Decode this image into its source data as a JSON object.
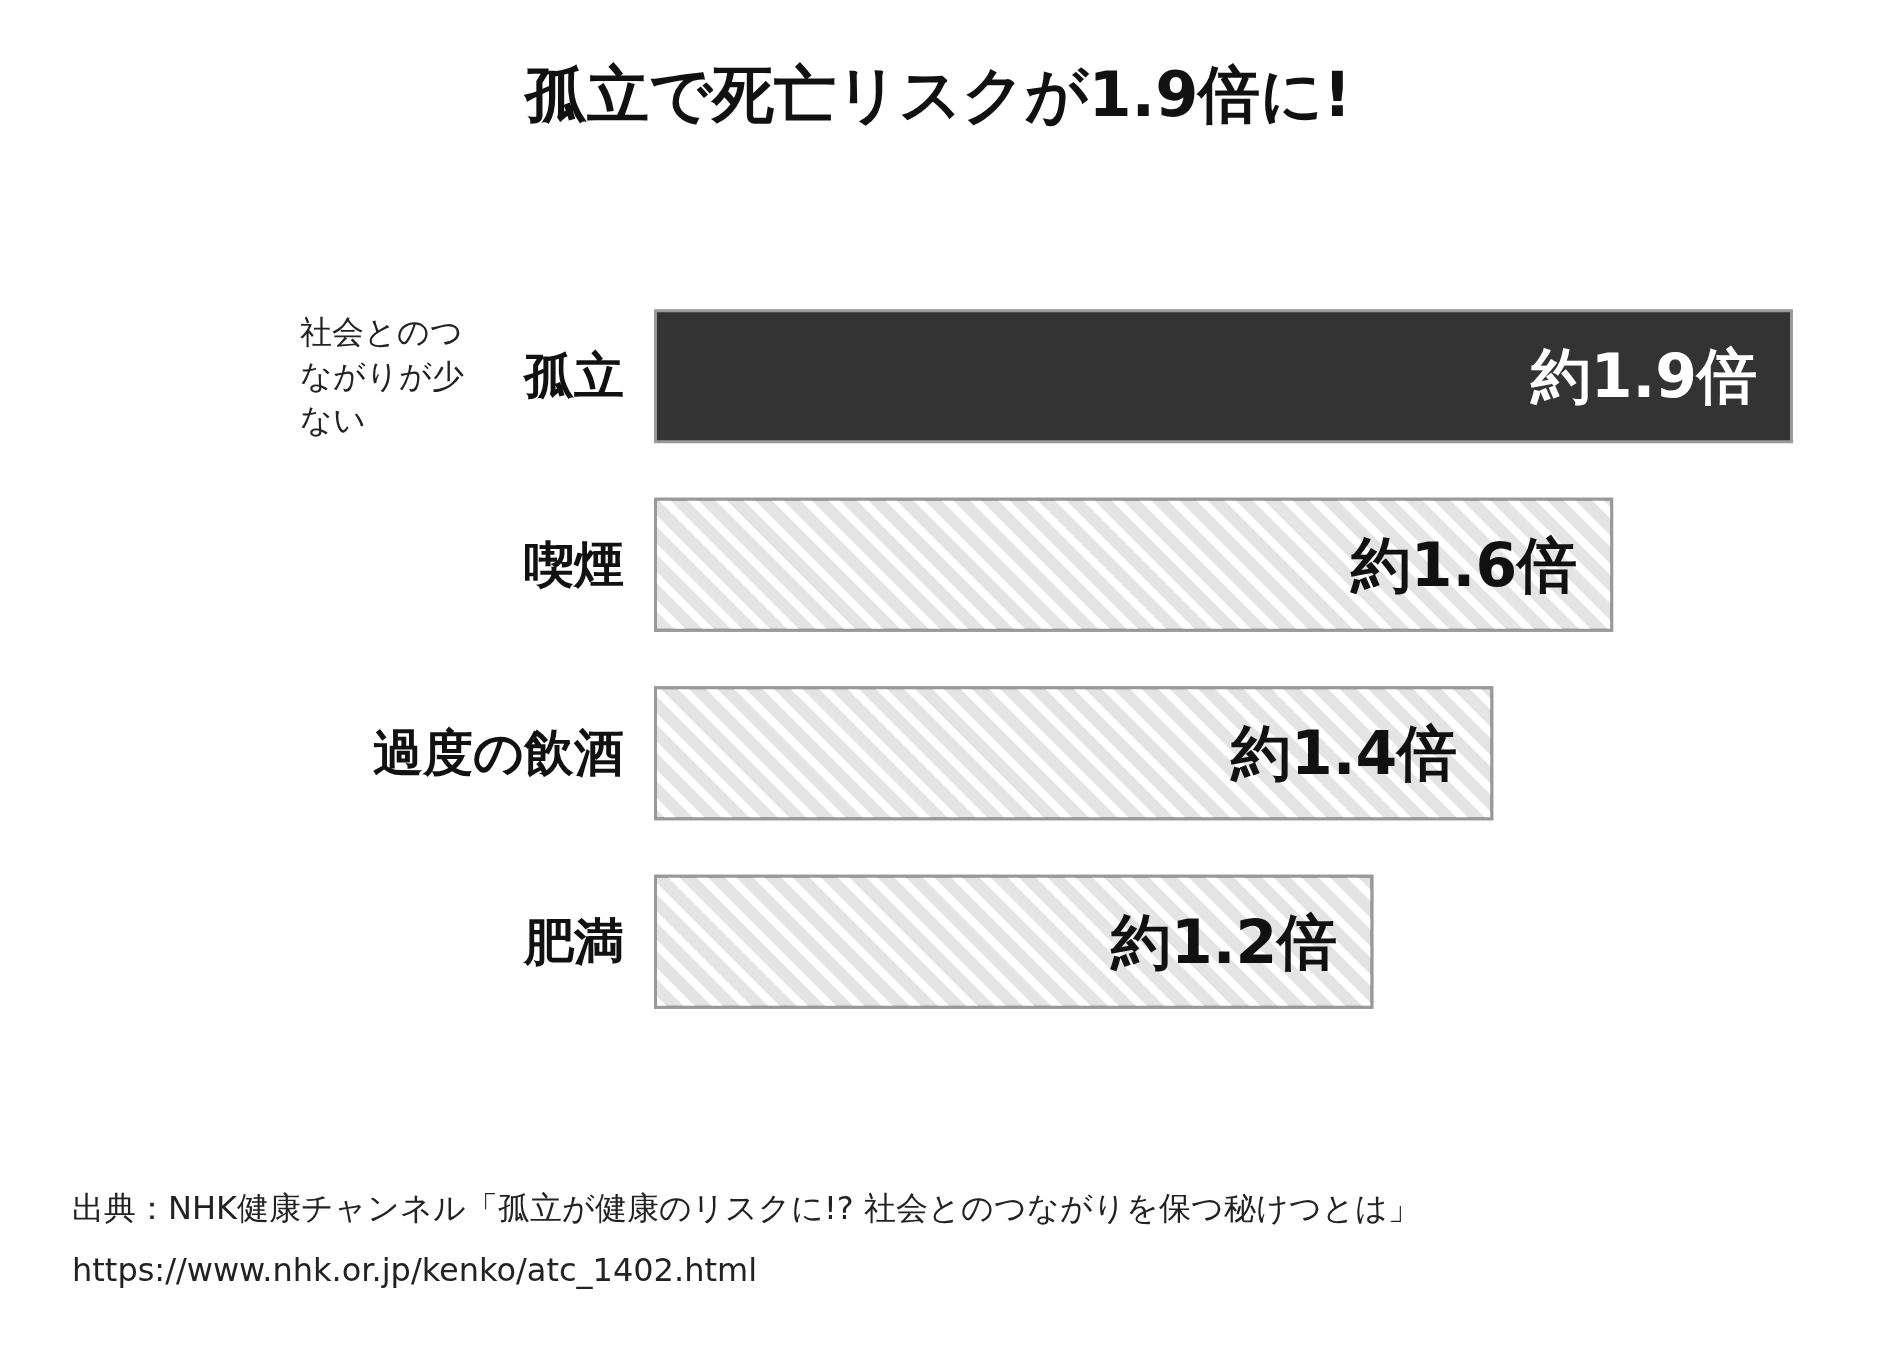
{
  "chart_data": {
    "type": "bar",
    "orientation": "horizontal",
    "title": "孤立で死亡リスクが1.9倍に!",
    "categories": [
      "孤立",
      "喫煙",
      "過度の飲酒",
      "肥満"
    ],
    "values": [
      1.9,
      1.6,
      1.4,
      1.2
    ],
    "value_labels": [
      "約1.9倍",
      "約1.6倍",
      "約1.4倍",
      "約1.2倍"
    ],
    "colors": [
      "#333333",
      "#e4e4e4",
      "#e4e4e4",
      "#e4e4e4"
    ],
    "annotations": [
      "社会とのつながりが少ない",
      "出典：NHK健康チャンネル「孤立が健康のリスクに!? 社会とのつながりを保つ秘けつとは」",
      "https://www.nhk.or.jp/kenko/atc_1402.html"
    ]
  }
}
